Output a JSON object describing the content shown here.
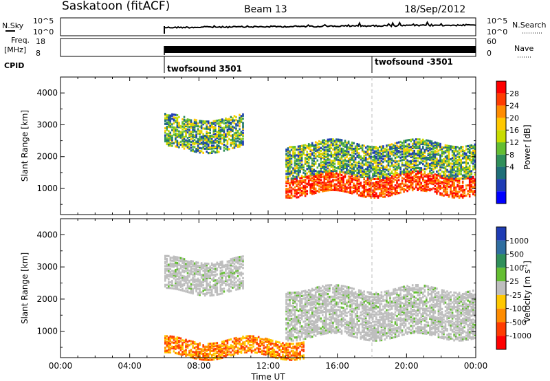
{
  "header": {
    "station": "Saskatoon (fitACF)",
    "beam": "Beam 13",
    "date": "18/Sep/2012"
  },
  "sky_panel": {
    "left_label": "N.Sky",
    "left_ticks": [
      "10^5",
      "10^0"
    ],
    "right_ticks": [
      "10^5",
      "10^0"
    ],
    "right_label": "N.Search"
  },
  "freq_panel": {
    "left_label_1": "Freq.",
    "left_label_2": "[MHz]",
    "left_ticks": [
      "18",
      "8"
    ],
    "right_ticks": [
      "60",
      "0"
    ],
    "right_label": "Nave"
  },
  "cpid": {
    "label": "CPID",
    "segments": [
      {
        "start_hour": 6,
        "name": "twofsound 3501"
      },
      {
        "start_hour": 18,
        "name": "twofsound -3501"
      }
    ]
  },
  "x_axis": {
    "ticks": [
      "00:00",
      "04:00",
      "08:00",
      "12:00",
      "16:00",
      "20:00",
      "00:00"
    ],
    "title": "Time UT"
  },
  "chart_data": [
    {
      "type": "heatmap",
      "title": "",
      "xlabel": "Time UT",
      "ylabel": "Slant Range [km]",
      "x_range_hours": [
        0,
        24
      ],
      "ylim": [
        180,
        4500
      ],
      "y_ticks": [
        1000,
        2000,
        3000,
        4000
      ],
      "colorbar": {
        "label": "Power [dB]",
        "ticks": [
          "28",
          "24",
          "20",
          "16",
          "12",
          "8",
          "4"
        ],
        "colors": [
          "#ff0000",
          "#ff3c00",
          "#ff8c00",
          "#ffc800",
          "#c8dc00",
          "#64be32",
          "#2f8f5a",
          "#1e6e78",
          "#1e3cb4",
          "#0000ff"
        ]
      },
      "echo_regions": [
        {
          "hours": [
            6,
            10.5
          ],
          "range_km": [
            2200,
            3200
          ],
          "dominant": "moderate power (12-20 dB)"
        },
        {
          "hours": [
            13,
            24
          ],
          "range_km": [
            800,
            1400
          ],
          "dominant": "high power (24-30 dB)"
        },
        {
          "hours": [
            13,
            24
          ],
          "range_km": [
            1400,
            2400
          ],
          "dominant": "moderate power (12-20 dB)"
        }
      ]
    },
    {
      "type": "heatmap",
      "title": "",
      "xlabel": "Time UT",
      "ylabel": "Slant Range [km]",
      "x_range_hours": [
        0,
        24
      ],
      "ylim": [
        180,
        4500
      ],
      "y_ticks": [
        1000,
        2000,
        3000,
        4000
      ],
      "colorbar": {
        "label": "Velocity [m s^-1]",
        "ticks": [
          "1000",
          "500",
          "100",
          "25",
          "-25",
          "-100",
          "-500",
          "-1000"
        ],
        "colors": [
          "#1e3cb4",
          "#2f6ea0",
          "#2f8f5a",
          "#64be32",
          "#bebebe",
          "#ffc800",
          "#ff8c00",
          "#ff3c00",
          "#ff0000"
        ]
      },
      "echo_regions": [
        {
          "hours": [
            6,
            10.5
          ],
          "range_km": [
            2200,
            3200
          ],
          "dominant": "ground scatter (grey)"
        },
        {
          "hours": [
            13,
            24
          ],
          "range_km": [
            800,
            2300
          ],
          "dominant": "ground scatter (grey)"
        },
        {
          "hours": [
            6,
            14
          ],
          "range_km": [
            200,
            700
          ],
          "dominant": "negative velocity (orange)"
        }
      ]
    }
  ]
}
